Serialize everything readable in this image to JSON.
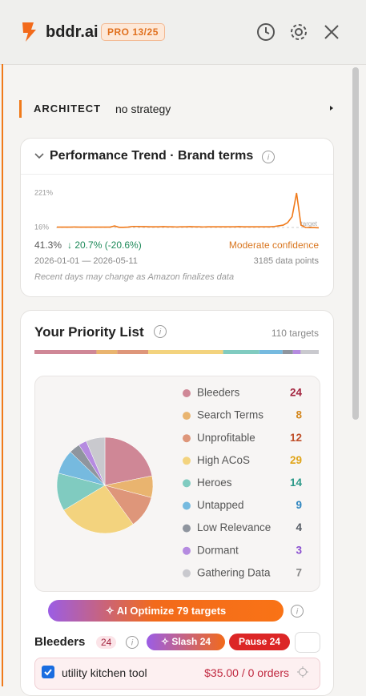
{
  "header": {
    "logo": "bddr.ai",
    "badge": "PRO 13/25"
  },
  "architect": {
    "label": "ARCHITECT",
    "value": "no strategy"
  },
  "trend": {
    "title": "Performance Trend · Brand terms",
    "yticks": [
      {
        "value": 221,
        "label": "221%"
      },
      {
        "value": 16,
        "label": "16%"
      }
    ],
    "ylim": [
      16,
      221
    ],
    "target_label": "target",
    "color": "#f07a1a",
    "values": [
      18,
      18,
      18,
      18,
      19,
      18,
      18,
      18,
      18,
      18,
      18,
      18,
      18,
      25,
      17,
      17,
      18,
      22,
      22,
      21,
      21,
      20,
      20,
      20,
      21,
      20,
      20,
      19,
      20,
      20,
      21,
      20,
      20,
      19,
      20,
      20,
      20,
      20,
      20,
      20,
      20,
      21,
      20,
      20,
      20,
      20,
      20,
      20,
      20,
      22,
      26,
      30,
      45,
      80,
      221,
      30,
      16,
      15,
      15,
      14
    ],
    "current": "41.3%",
    "change": "↓ 20.7% (-20.6%)",
    "confidence": "Moderate confidence",
    "date_range": "2026-01-01 — 2026-05-11",
    "points": "3185 data points",
    "note": "Recent days may change as Amazon finalizes data"
  },
  "priority": {
    "title": "Your Priority List",
    "targets": "110 targets",
    "categories": [
      {
        "name": "Bleeders",
        "count": 24,
        "color": "#cf8796",
        "text_color": "#a3243f"
      },
      {
        "name": "Search Terms",
        "count": 8,
        "color": "#e9b46f",
        "text_color": "#d4881f"
      },
      {
        "name": "Unprofitable",
        "count": 12,
        "color": "#de967a",
        "text_color": "#c0502a"
      },
      {
        "name": "High ACoS",
        "count": 29,
        "color": "#f3d37e",
        "text_color": "#e0a418"
      },
      {
        "name": "Heroes",
        "count": 14,
        "color": "#80cbc0",
        "text_color": "#2e9a8a"
      },
      {
        "name": "Untapped",
        "count": 9,
        "color": "#76badf",
        "text_color": "#2f86c0"
      },
      {
        "name": "Low Relevance",
        "count": 4,
        "color": "#8f959e",
        "text_color": "#555b64"
      },
      {
        "name": "Dormant",
        "count": 3,
        "color": "#b58be0",
        "text_color": "#8a4fd0"
      },
      {
        "name": "Gathering Data",
        "count": 7,
        "color": "#c9c9ce",
        "text_color": "#888888"
      }
    ]
  },
  "optimize": "AI Optimize 79 targets",
  "bleeders": {
    "title": "Bleeders",
    "count": 24,
    "slash": "Slash 24",
    "pause": "Pause 24"
  },
  "row": {
    "name": "utility kitchen tool",
    "value": "$35.00 / 0 orders"
  }
}
